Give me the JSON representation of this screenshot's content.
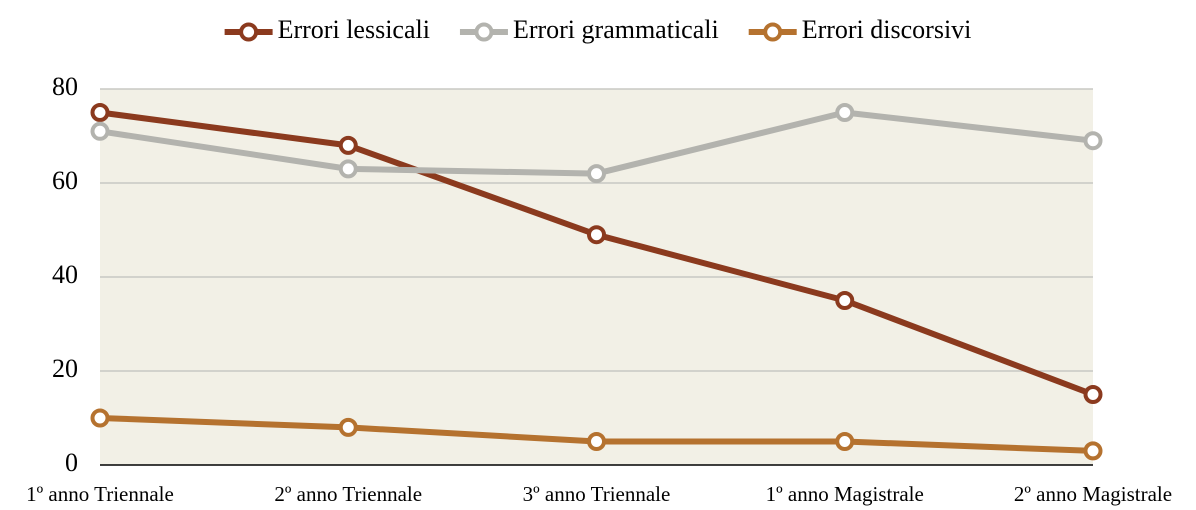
{
  "chart_data": {
    "type": "line",
    "categories": [
      "1º anno Triennale",
      "2º anno Triennale",
      "3º anno Triennale",
      "1º anno Magistrale",
      "2º anno Magistrale"
    ],
    "series": [
      {
        "name": "Errori lessicali",
        "color": "#8b3a1e",
        "values": [
          75,
          68,
          49,
          35,
          15
        ]
      },
      {
        "name": "Errori grammaticali",
        "color": "#b3b3ae",
        "values": [
          71,
          63,
          62,
          75,
          69
        ]
      },
      {
        "name": "Errori discorsivi",
        "color": "#b5722f",
        "values": [
          10,
          8,
          5,
          5,
          3
        ]
      }
    ],
    "ylim": [
      0,
      80
    ],
    "yticks": [
      0,
      20,
      40,
      60,
      80
    ],
    "grid": true,
    "legend": "top"
  }
}
